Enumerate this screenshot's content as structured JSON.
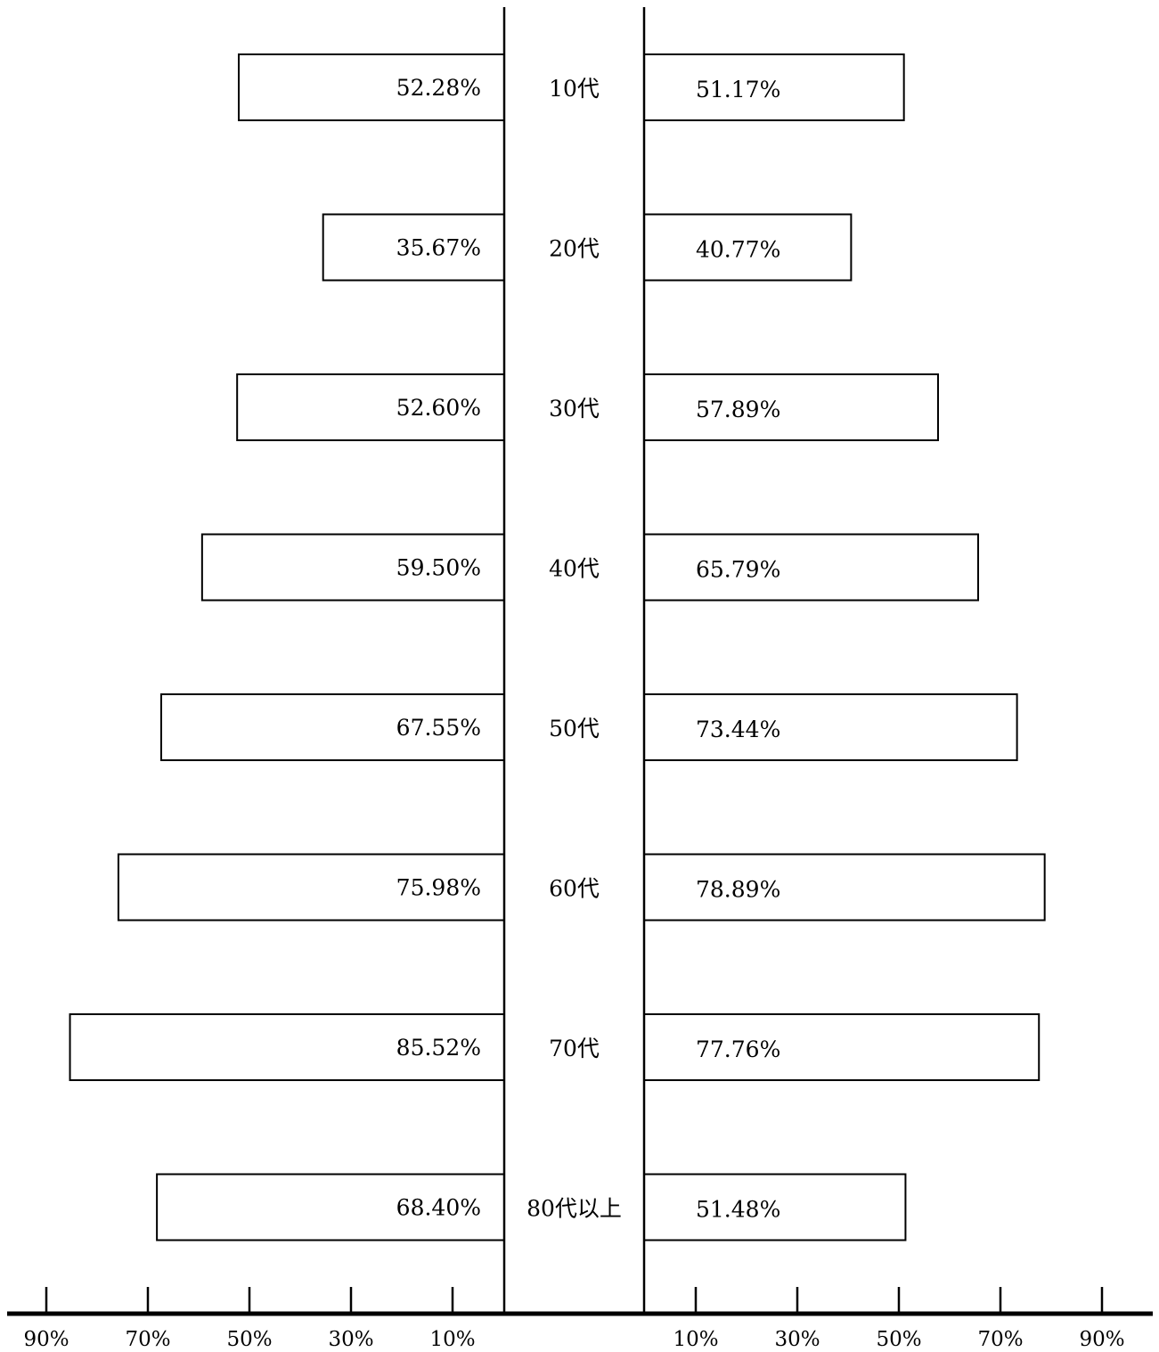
{
  "chart_data": {
    "type": "bar",
    "categories": [
      "10代",
      "20代",
      "30代",
      "40代",
      "50代",
      "60代",
      "70代",
      "80代以上"
    ],
    "series": [
      {
        "values": [
          52.28,
          35.67,
          52.6,
          59.5,
          67.55,
          75.98,
          85.52,
          68.4
        ],
        "labels": [
          "52.28%",
          "35.67%",
          "52.60%",
          "59.50%",
          "67.55%",
          "75.98%",
          "85.52%",
          "68.40%"
        ]
      },
      {
        "values": [
          51.17,
          40.77,
          57.89,
          65.79,
          73.44,
          78.89,
          77.76,
          51.48
        ],
        "labels": [
          "51.17%",
          "40.77%",
          "57.89%",
          "65.79%",
          "73.44%",
          "78.89%",
          "77.76%",
          "51.48%"
        ]
      }
    ],
    "x_ticks": [
      10,
      30,
      50,
      70,
      90
    ],
    "x_tick_labels": [
      "10%",
      "30%",
      "50%",
      "70%",
      "90%"
    ],
    "xlim": [
      0,
      90
    ],
    "legend": "none",
    "grid": false
  }
}
